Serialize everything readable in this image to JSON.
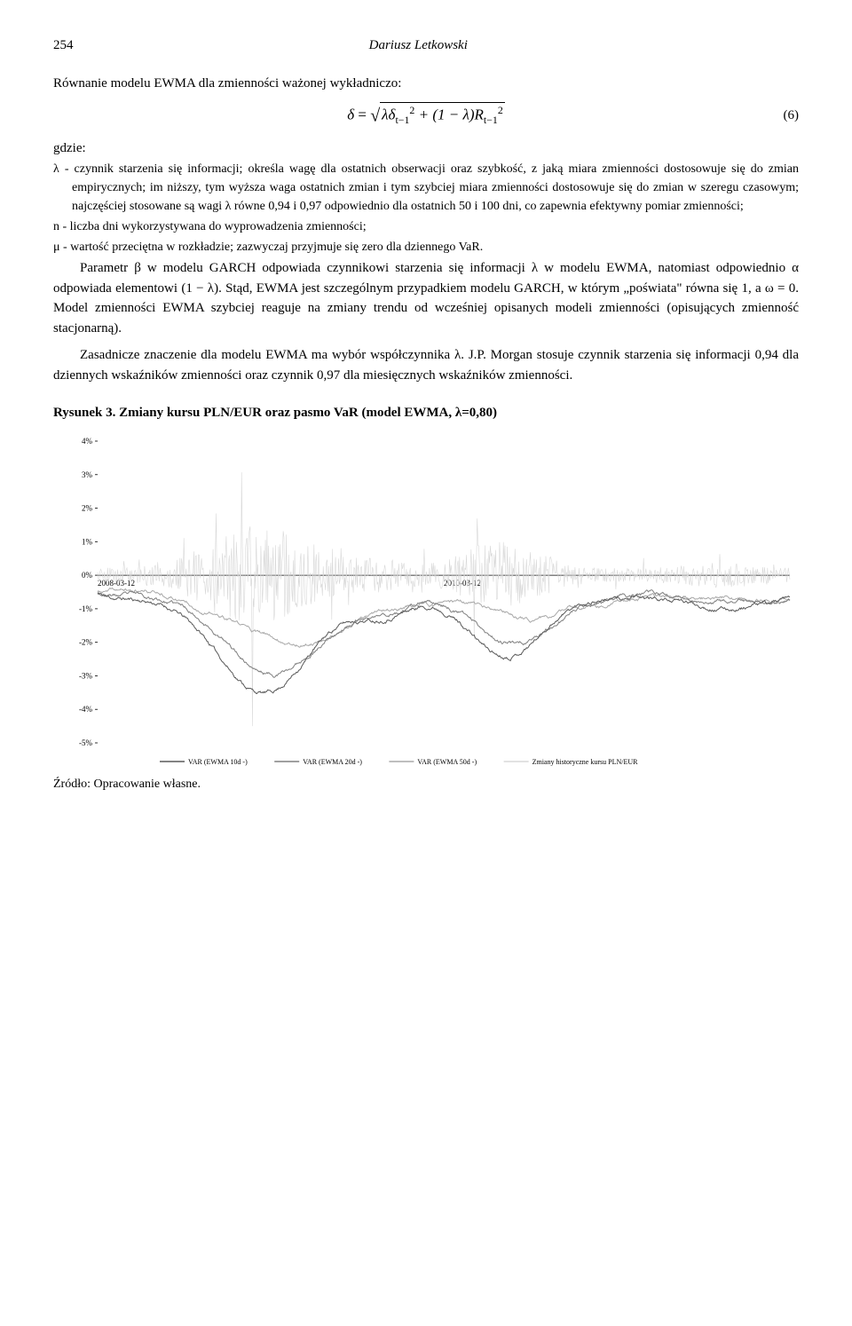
{
  "page_number": "254",
  "author": "Dariusz Letkowski",
  "p1": "Równanie modelu EWMA dla zmienności ważonej wykładniczo:",
  "formula_lhs": "δ",
  "formula_eq": " = ",
  "formula_rhs_a": "λδ",
  "formula_rhs_a_sub": "t−1",
  "formula_rhs_a_sup": "2",
  "formula_rhs_plus": " + (1 − λ)R",
  "formula_rhs_b_sub": "t−1",
  "formula_rhs_b_sup": "2",
  "formula_num": "(6)",
  "gdzie": "gdzie:",
  "def_lambda": "λ  - czynnik starzenia się informacji; określa wagę dla ostatnich obserwacji oraz szybkość, z jaką miara zmienności dostosowuje się do zmian empirycznych; im niższy, tym wyższa waga ostatnich zmian i tym szybciej miara zmienności dostosowuje się do zmian w szeregu czasowym; najczęściej stosowane są wagi λ równe 0,94 i 0,97 odpowiednio dla ostatnich 50 i 100 dni, co zapewnia efektywny pomiar zmienności;",
  "def_n": "n  - liczba dni wykorzystywana do wyprowadzenia zmienności;",
  "def_mu": "μ  - wartość przeciętna w rozkładzie; zazwyczaj przyjmuje się zero dla dziennego VaR.",
  "p2": "Parametr β w modelu GARCH odpowiada czynnikowi starzenia się informacji λ w modelu EWMA, natomiast odpowiednio α odpowiada elementowi (1 − λ). Stąd, EWMA jest szczególnym przypadkiem modelu GARCH, w którym „poświata\" równa się 1, a ω = 0. Model zmienności EWMA szybciej reaguje na zmiany trendu od wcześniej opisanych modeli zmienności (opisujących zmienność stacjonarną).",
  "p3": "Zasadnicze znaczenie dla modelu EWMA ma wybór współczynnika λ. J.P. Morgan stosuje czynnik starzenia się informacji 0,94 dla dziennych wskaźników zmienności oraz czynnik 0,97 dla miesięcznych wskaźników zmienności.",
  "figure_title": "Rysunek 3. Zmiany kursu PLN/EUR oraz pasmo VaR (model EWMA, λ=0,80)",
  "source": "Źródło: Opracowanie własne.",
  "chart": {
    "type": "line",
    "y_ticks": [
      "4%",
      "3%",
      "2%",
      "1%",
      "0%",
      "-1%",
      "-2%",
      "-3%",
      "-4%",
      "-5%"
    ],
    "y_min": -5,
    "y_max": 4,
    "x_labels": [
      "2008-03-12",
      "2010-03-12"
    ],
    "x_count": 900,
    "background_color": "#ffffff",
    "grid_color": "#d0d0d0",
    "axis_color": "#000000",
    "label_fontsize": 9,
    "legend_fontsize": 8,
    "series": [
      {
        "name": "VAR (EWMA 10d -)",
        "color": "#5a5a5a",
        "width": 1
      },
      {
        "name": "VAR (EWMA 20d -)",
        "color": "#808080",
        "width": 1
      },
      {
        "name": "VAR (EWMA 50d -)",
        "color": "#a8a8a8",
        "width": 1
      },
      {
        "name": "Zmiany historyczne kursu PLN/EUR",
        "color": "#d8d8d8",
        "width": 0.6
      }
    ],
    "seeds": [
      11,
      23,
      37,
      5
    ]
  }
}
